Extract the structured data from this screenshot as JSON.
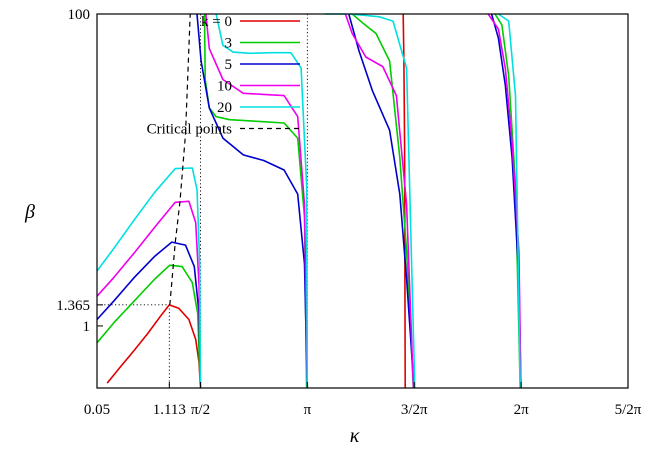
{
  "chart_data": {
    "type": "line",
    "title": "",
    "xlabel": "κ",
    "ylabel": "β",
    "xlim": [
      0.05,
      7.8539816
    ],
    "ylim": [
      0.4,
      100
    ],
    "yscale": "log",
    "grid": false,
    "legend": {
      "position": "top-left"
    },
    "x_ticks": [
      {
        "value": 0.05,
        "label": "0.05"
      },
      {
        "value": 1.113,
        "label": "1.113"
      },
      {
        "value": 1.5707963,
        "label": "π/2"
      },
      {
        "value": 3.1415927,
        "label": "π"
      },
      {
        "value": 4.712389,
        "label": "3/2π"
      },
      {
        "value": 6.2831853,
        "label": "2π"
      },
      {
        "value": 7.8539816,
        "label": "5/2π"
      }
    ],
    "y_ticks": [
      {
        "value": 1,
        "label": "1"
      },
      {
        "value": 1.365,
        "label": "1.365"
      },
      {
        "value": 100,
        "label": "100"
      }
    ],
    "reference_lines": [
      {
        "kind": "vertical-dotted",
        "x": 1.113,
        "y_top": 1.365
      },
      {
        "kind": "horizontal-dotted",
        "y": 1.365,
        "x_right": 1.113
      },
      {
        "kind": "vertical-dotted",
        "x": 1.5707963
      },
      {
        "kind": "vertical-dotted",
        "x": 3.1415927
      }
    ],
    "series": [
      {
        "name": "k = 0",
        "color": "#e00000",
        "style": "solid",
        "branches": [
          {
            "x": [
              0.2,
              0.4,
              0.6,
              0.8,
              1.0,
              1.113,
              1.25,
              1.4,
              1.5,
              1.55,
              1.57
            ],
            "y": [
              0.43,
              0.55,
              0.7,
              0.9,
              1.18,
              1.365,
              1.3,
              1.1,
              0.82,
              0.58,
              0.4
            ]
          },
          {
            "x": [
              4.55,
              4.56,
              4.57,
              4.58
            ],
            "y": [
              100,
              50,
              14,
              0.4
            ]
          }
        ]
      },
      {
        "name": "3",
        "color": "#00cc00",
        "style": "solid",
        "branches": [
          {
            "x": [
              0.05,
              0.3,
              0.6,
              0.9,
              1.12,
              1.3,
              1.45,
              1.53,
              1.57
            ],
            "y": [
              0.78,
              1.05,
              1.45,
              2.0,
              2.45,
              2.4,
              1.9,
              1.2,
              0.4
            ]
          },
          {
            "x": [
              1.63,
              1.64,
              1.7,
              1.8,
              2.0,
              2.4,
              2.8,
              3.0,
              3.1,
              3.13
            ],
            "y": [
              100,
              38,
              25,
              22,
              21,
              20.5,
              20,
              16,
              5,
              0.4
            ]
          },
          {
            "x": [
              3.8,
              3.95,
              4.15,
              4.35,
              4.5,
              4.6,
              4.7
            ],
            "y": [
              100,
              88,
              75,
              50,
              12,
              3,
              0.4
            ]
          },
          {
            "x": [
              5.9,
              6.0,
              6.1,
              6.2,
              6.27
            ],
            "y": [
              100,
              85,
              40,
              8,
              0.4
            ]
          }
        ]
      },
      {
        "name": "5",
        "color": "#0000cc",
        "style": "solid",
        "branches": [
          {
            "x": [
              0.05,
              0.3,
              0.6,
              0.9,
              1.15,
              1.35,
              1.48,
              1.55,
              1.57
            ],
            "y": [
              1.1,
              1.45,
              2.05,
              2.8,
              3.45,
              3.3,
              2.4,
              1.2,
              0.4
            ]
          },
          {
            "x": [
              1.52,
              1.58,
              1.7,
              1.9,
              2.2,
              2.5,
              2.8,
              3.0,
              3.1,
              3.14
            ],
            "y": [
              100,
              50,
              25,
              16,
              12.5,
              11.5,
              10,
              7,
              2.5,
              0.4
            ]
          },
          {
            "x": [
              3.75,
              3.9,
              4.1,
              4.35,
              4.5,
              4.6,
              4.71
            ],
            "y": [
              100,
              58,
              32,
              18,
              7,
              2,
              0.4
            ]
          },
          {
            "x": [
              5.85,
              5.95,
              6.05,
              6.15,
              6.25,
              6.28
            ],
            "y": [
              100,
              70,
              35,
              12,
              2,
              0.4
            ]
          }
        ]
      },
      {
        "name": "10",
        "color": "#ee00ee",
        "style": "solid",
        "branches": [
          {
            "x": [
              0.05,
              0.3,
              0.6,
              0.9,
              1.2,
              1.4,
              1.5,
              1.55,
              1.57
            ],
            "y": [
              1.55,
              2.05,
              2.95,
              4.3,
              6.2,
              6.3,
              4.6,
              1.8,
              0.4
            ]
          },
          {
            "x": [
              1.65,
              1.7,
              1.9,
              2.2,
              2.5,
              2.8,
              3.0,
              3.1,
              3.14
            ],
            "y": [
              100,
              60,
              38,
              31,
              30.5,
              30,
              22,
              6,
              0.4
            ]
          },
          {
            "x": [
              3.7,
              3.8,
              4.0,
              4.25,
              4.45,
              4.6,
              4.7
            ],
            "y": [
              100,
              75,
              53,
              46,
              30,
              6,
              0.4
            ]
          },
          {
            "x": [
              5.8,
              5.95,
              6.05,
              6.15,
              6.25,
              6.28
            ],
            "y": [
              100,
              80,
              45,
              15,
              3,
              0.4
            ]
          }
        ]
      },
      {
        "name": "20",
        "color": "#00e0e0",
        "style": "solid",
        "branches": [
          {
            "x": [
              0.05,
              0.3,
              0.6,
              0.9,
              1.2,
              1.45,
              1.52,
              1.56,
              1.57
            ],
            "y": [
              2.25,
              3.15,
              4.8,
              7.2,
              10.2,
              10.3,
              7.5,
              2.5,
              0.4
            ]
          },
          {
            "x": [
              1.8,
              1.9,
              2.05,
              2.3,
              2.6,
              2.9,
              3.05,
              3.13,
              3.14
            ],
            "y": [
              100,
              63,
              57,
              56,
              56.5,
              56.5,
              45,
              8,
              0.4
            ]
          },
          {
            "x": [
              3.4,
              3.5,
              3.7
            ],
            "y": [
              100,
              100,
              100
            ]
          },
          {
            "x": [
              3.75,
              4.0,
              4.2,
              4.4,
              4.6,
              4.72
            ],
            "y": [
              100,
              98,
              96,
              90,
              45,
              0.4
            ]
          },
          {
            "x": [
              5.95,
              6.1,
              6.2,
              6.27
            ],
            "y": [
              100,
              90,
              30,
              0.4
            ]
          }
        ]
      },
      {
        "name": "Critical points",
        "color": "#000000",
        "style": "dashed",
        "branches": [
          {
            "x": [
              1.12,
              1.15,
              1.2,
              1.27,
              1.35,
              1.42
            ],
            "y": [
              1.365,
              1.9,
              3.4,
              6.3,
              17,
              100
            ]
          }
        ]
      }
    ]
  }
}
